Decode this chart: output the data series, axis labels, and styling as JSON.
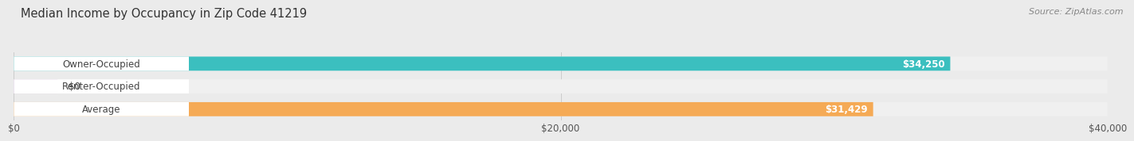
{
  "title": "Median Income by Occupancy in Zip Code 41219",
  "source": "Source: ZipAtlas.com",
  "categories": [
    "Owner-Occupied",
    "Renter-Occupied",
    "Average"
  ],
  "values": [
    34250,
    0,
    31429
  ],
  "bar_colors": [
    "#3bbfbf",
    "#c9aad6",
    "#f5aa55"
  ],
  "bar_labels": [
    "$34,250",
    "$0",
    "$31,429"
  ],
  "xlim": [
    0,
    40000
  ],
  "xticks": [
    0,
    20000,
    40000
  ],
  "xticklabels": [
    "$0",
    "$20,000",
    "$40,000"
  ],
  "title_fontsize": 10.5,
  "source_fontsize": 8,
  "label_fontsize": 8.5,
  "tick_fontsize": 8.5
}
